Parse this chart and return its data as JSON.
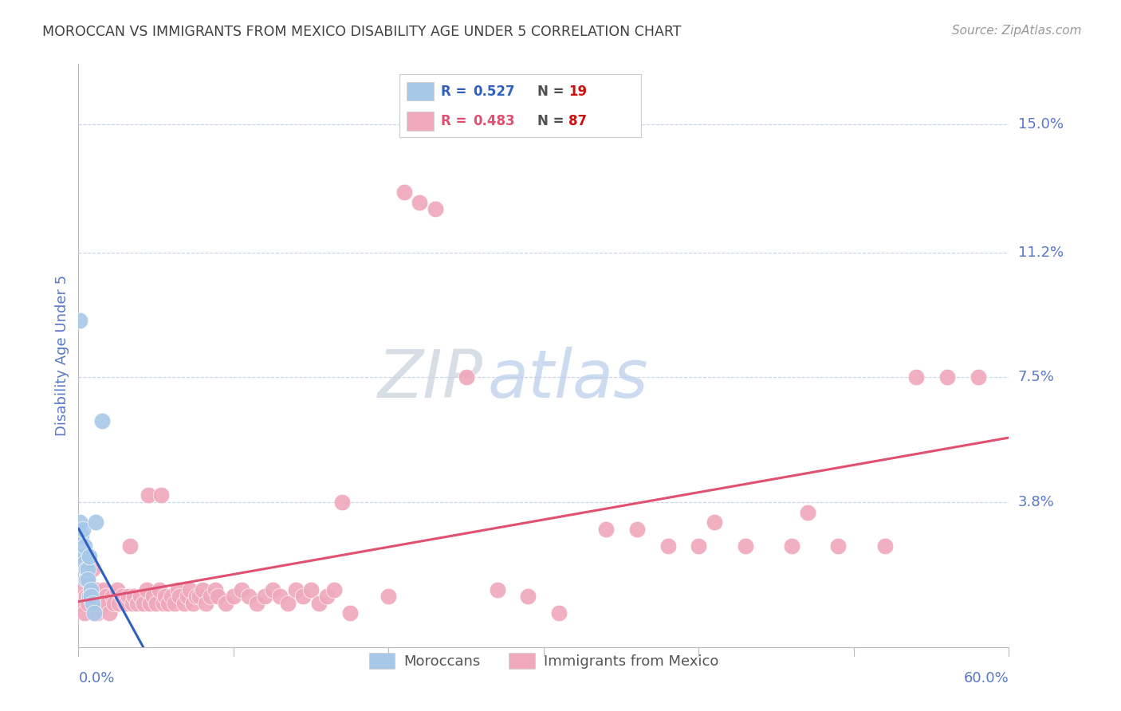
{
  "title": "MOROCCAN VS IMMIGRANTS FROM MEXICO DISABILITY AGE UNDER 5 CORRELATION CHART",
  "source": "Source: ZipAtlas.com",
  "ylabel": "Disability Age Under 5",
  "ytick_labels": [
    "15.0%",
    "11.2%",
    "7.5%",
    "3.8%"
  ],
  "ytick_values": [
    0.15,
    0.112,
    0.075,
    0.038
  ],
  "xmin": 0.0,
  "xmax": 0.6,
  "ymin": -0.005,
  "ymax": 0.168,
  "moroccan_color": "#a8c8e8",
  "mexico_color": "#f0a8bc",
  "moroccan_line_color": "#3060c0",
  "mexico_line_color": "#e05070",
  "dashed_line_color": "#a0b8d8",
  "background_color": "#ffffff",
  "grid_color": "#c8d4e8",
  "title_color": "#404040",
  "right_label_color": "#5878c8",
  "ylabel_color": "#5878c8",
  "bottom_label_color": "#5878c8",
  "watermark_color": "#dce8f4",
  "moroccan_points": [
    [
      0.001,
      0.032
    ],
    [
      0.002,
      0.028
    ],
    [
      0.003,
      0.022
    ],
    [
      0.003,
      0.03
    ],
    [
      0.004,
      0.025
    ],
    [
      0.004,
      0.02
    ],
    [
      0.005,
      0.018
    ],
    [
      0.005,
      0.015
    ],
    [
      0.006,
      0.018
    ],
    [
      0.006,
      0.015
    ],
    [
      0.007,
      0.022
    ],
    [
      0.007,
      0.01
    ],
    [
      0.008,
      0.012
    ],
    [
      0.008,
      0.01
    ],
    [
      0.009,
      0.008
    ],
    [
      0.01,
      0.005
    ],
    [
      0.011,
      0.032
    ],
    [
      0.015,
      0.062
    ],
    [
      0.001,
      0.092
    ]
  ],
  "mexico_points": [
    [
      0.002,
      0.008
    ],
    [
      0.003,
      0.012
    ],
    [
      0.004,
      0.005
    ],
    [
      0.005,
      0.01
    ],
    [
      0.006,
      0.015
    ],
    [
      0.006,
      0.008
    ],
    [
      0.007,
      0.01
    ],
    [
      0.008,
      0.012
    ],
    [
      0.009,
      0.018
    ],
    [
      0.01,
      0.008
    ],
    [
      0.011,
      0.012
    ],
    [
      0.012,
      0.005
    ],
    [
      0.013,
      0.008
    ],
    [
      0.014,
      0.01
    ],
    [
      0.015,
      0.008
    ],
    [
      0.016,
      0.012
    ],
    [
      0.017,
      0.008
    ],
    [
      0.018,
      0.01
    ],
    [
      0.019,
      0.008
    ],
    [
      0.02,
      0.005
    ],
    [
      0.022,
      0.01
    ],
    [
      0.023,
      0.008
    ],
    [
      0.025,
      0.012
    ],
    [
      0.026,
      0.008
    ],
    [
      0.028,
      0.01
    ],
    [
      0.03,
      0.008
    ],
    [
      0.032,
      0.01
    ],
    [
      0.033,
      0.025
    ],
    [
      0.035,
      0.008
    ],
    [
      0.036,
      0.01
    ],
    [
      0.038,
      0.008
    ],
    [
      0.04,
      0.01
    ],
    [
      0.042,
      0.008
    ],
    [
      0.044,
      0.012
    ],
    [
      0.045,
      0.04
    ],
    [
      0.046,
      0.008
    ],
    [
      0.048,
      0.01
    ],
    [
      0.05,
      0.008
    ],
    [
      0.052,
      0.012
    ],
    [
      0.053,
      0.04
    ],
    [
      0.055,
      0.008
    ],
    [
      0.056,
      0.01
    ],
    [
      0.058,
      0.008
    ],
    [
      0.06,
      0.01
    ],
    [
      0.062,
      0.008
    ],
    [
      0.064,
      0.012
    ],
    [
      0.065,
      0.01
    ],
    [
      0.068,
      0.008
    ],
    [
      0.07,
      0.01
    ],
    [
      0.072,
      0.012
    ],
    [
      0.074,
      0.008
    ],
    [
      0.076,
      0.01
    ],
    [
      0.078,
      0.01
    ],
    [
      0.08,
      0.012
    ],
    [
      0.082,
      0.008
    ],
    [
      0.085,
      0.01
    ],
    [
      0.088,
      0.012
    ],
    [
      0.09,
      0.01
    ],
    [
      0.095,
      0.008
    ],
    [
      0.1,
      0.01
    ],
    [
      0.105,
      0.012
    ],
    [
      0.11,
      0.01
    ],
    [
      0.115,
      0.008
    ],
    [
      0.12,
      0.01
    ],
    [
      0.125,
      0.012
    ],
    [
      0.13,
      0.01
    ],
    [
      0.135,
      0.008
    ],
    [
      0.14,
      0.012
    ],
    [
      0.145,
      0.01
    ],
    [
      0.15,
      0.012
    ],
    [
      0.155,
      0.008
    ],
    [
      0.16,
      0.01
    ],
    [
      0.165,
      0.012
    ],
    [
      0.17,
      0.038
    ],
    [
      0.175,
      0.005
    ],
    [
      0.2,
      0.01
    ],
    [
      0.21,
      0.13
    ],
    [
      0.22,
      0.127
    ],
    [
      0.23,
      0.125
    ],
    [
      0.25,
      0.075
    ],
    [
      0.27,
      0.012
    ],
    [
      0.29,
      0.01
    ],
    [
      0.31,
      0.005
    ],
    [
      0.34,
      0.03
    ],
    [
      0.36,
      0.03
    ],
    [
      0.38,
      0.025
    ],
    [
      0.4,
      0.025
    ],
    [
      0.41,
      0.032
    ],
    [
      0.43,
      0.025
    ],
    [
      0.46,
      0.025
    ],
    [
      0.47,
      0.035
    ],
    [
      0.49,
      0.025
    ],
    [
      0.52,
      0.025
    ],
    [
      0.54,
      0.075
    ],
    [
      0.56,
      0.075
    ],
    [
      0.58,
      0.075
    ]
  ],
  "moroccan_line": {
    "x0": 0.0,
    "x1": 0.17,
    "dashed_x1": 0.6
  },
  "mexico_line": {
    "x0": 0.0,
    "x1": 0.6
  },
  "bottom_legend_labels": [
    "Moroccans",
    "Immigrants from Mexico"
  ]
}
